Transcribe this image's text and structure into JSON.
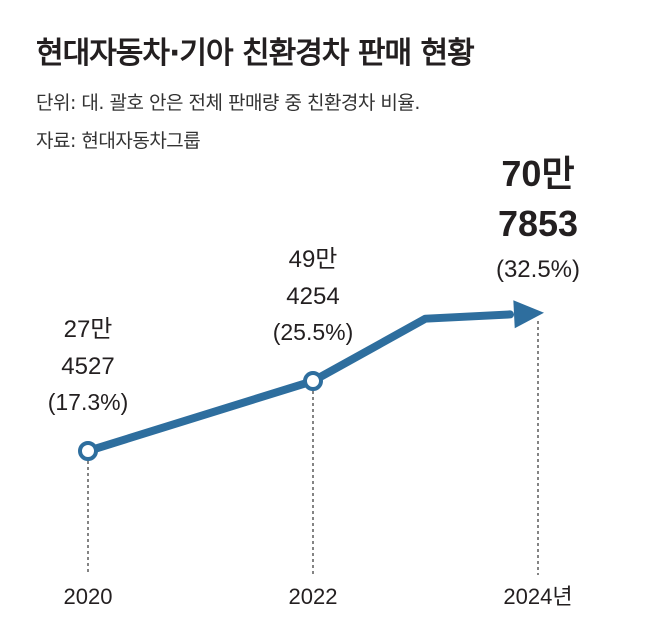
{
  "header": {
    "title": "현대자동차·기아 친환경차 판매 현황",
    "unit_note": "단위: 대. 괄호 안은 전체 판매량 중 친환경차 비율.",
    "source": "자료: 현대자동차그룹"
  },
  "colors": {
    "line": "#2e6e9e",
    "text": "#231f20",
    "guide": "#333333"
  },
  "chart_data": {
    "type": "line",
    "title": "현대자동차·기아 친환경차 판매 현황",
    "x_tick_labels": [
      "2020",
      "2022",
      "2024년"
    ],
    "x": [
      2020,
      2022,
      2023,
      2024
    ],
    "values": [
      274527,
      494254,
      690000,
      707853
    ],
    "annotations": [
      {
        "x": 2020,
        "line1": "27만",
        "line2": "4527",
        "share": "(17.3%)",
        "emphasis": false
      },
      {
        "x": 2022,
        "line1": "49만",
        "line2": "4254",
        "share": "(25.5%)",
        "emphasis": false
      },
      {
        "x": 2024,
        "line1": "70만",
        "line2": "7853",
        "share": "(32.5%)",
        "emphasis": true
      }
    ],
    "markers": [
      2020,
      2022
    ],
    "end_arrow": true,
    "grid": false
  }
}
